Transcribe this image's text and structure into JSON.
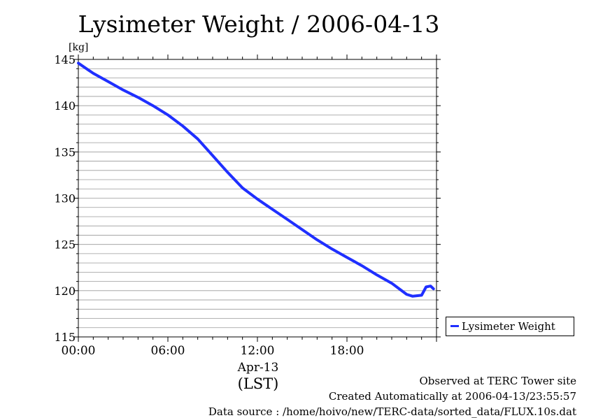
{
  "chart_data": {
    "type": "line",
    "title": "Lysimeter Weight / 2006-04-13",
    "yunit": "[kg]",
    "xlabel_date": "Apr-13",
    "xlabel_tz": "(LST)",
    "ylim": [
      115,
      145
    ],
    "yticks": [
      "115",
      "120",
      "125",
      "130",
      "135",
      "140",
      "145"
    ],
    "xlim": [
      0,
      24
    ],
    "xticks": [
      {
        "value": 0,
        "label": "00:00"
      },
      {
        "value": 6,
        "label": "06:00"
      },
      {
        "value": 12,
        "label": "12:00"
      },
      {
        "value": 18,
        "label": "18:00"
      }
    ],
    "grid": true,
    "legend_placement": "right",
    "series": [
      {
        "name": "Lysimeter Weight",
        "color": "#1f2fff",
        "x": [
          0,
          1,
          2,
          3,
          4,
          5,
          6,
          7,
          8,
          9,
          10,
          11,
          12,
          13,
          14,
          15,
          16,
          17,
          18,
          19,
          20,
          21,
          22,
          22.4,
          23,
          23.3,
          23.6,
          23.8
        ],
        "y": [
          144.6,
          143.5,
          142.6,
          141.7,
          140.9,
          140.0,
          139.0,
          137.8,
          136.4,
          134.6,
          132.8,
          131.1,
          129.9,
          128.8,
          127.7,
          126.6,
          125.5,
          124.5,
          123.6,
          122.7,
          121.7,
          120.8,
          119.6,
          119.4,
          119.5,
          120.4,
          120.5,
          120.2
        ]
      }
    ]
  },
  "footer": {
    "observed": "Observed at TERC Tower site",
    "created": "Created Automatically at 2006-04-13/23:55:57",
    "source": "Data source : /home/hoivo/new/TERC-data/sorted_data/FLUX.10s.dat"
  }
}
